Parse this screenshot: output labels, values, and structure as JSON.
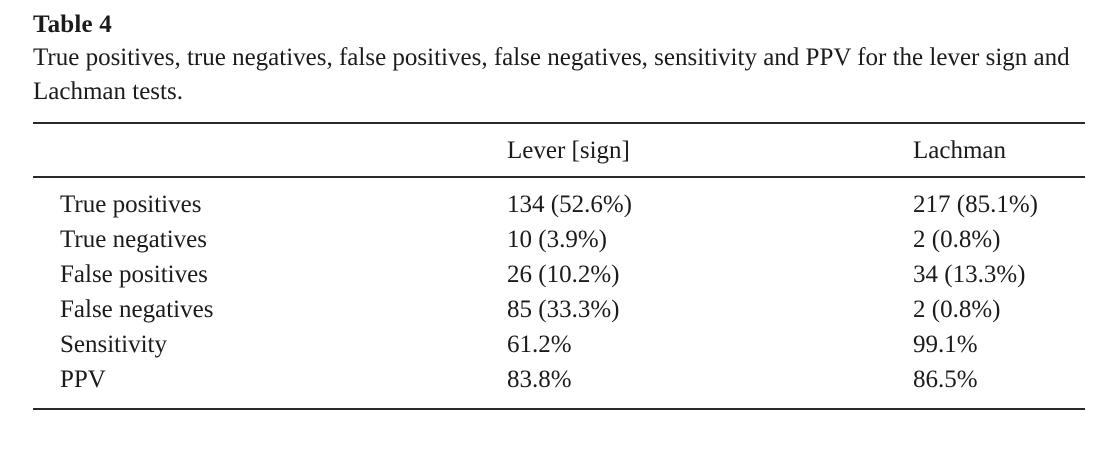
{
  "table": {
    "label": "Table 4",
    "caption": "True positives, true negatives, false positives, false negatives, sensitivity and PPV for the lever sign and Lachman tests.",
    "columns": {
      "rowhead": "",
      "lever": "Lever [sign]",
      "lachman": "Lachman"
    },
    "rows": [
      {
        "label": "True positives",
        "lever": "134 (52.6%)",
        "lachman": "217 (85.1%)"
      },
      {
        "label": "True negatives",
        "lever": "10 (3.9%)",
        "lachman": "2 (0.8%)"
      },
      {
        "label": "False positives",
        "lever": "26 (10.2%)",
        "lachman": "34 (13.3%)"
      },
      {
        "label": "False negatives",
        "lever": "85 (33.3%)",
        "lachman": "2 (0.8%)"
      },
      {
        "label": "Sensitivity",
        "lever": "61.2%",
        "lachman": "99.1%"
      },
      {
        "label": "PPV",
        "lever": "83.8%",
        "lachman": "86.5%"
      }
    ]
  },
  "colors": {
    "text": "#1b1b1b",
    "rule": "#2a2a2a",
    "background": "#ffffff"
  }
}
